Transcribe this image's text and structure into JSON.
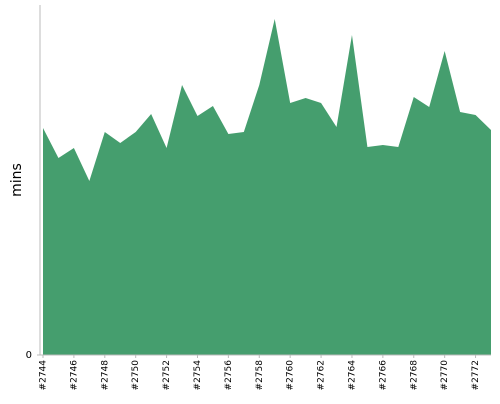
{
  "chart_data": {
    "type": "area",
    "y_label": "mins",
    "categories": [
      "#2744",
      null,
      "#2746",
      null,
      "#2748",
      null,
      "#2750",
      null,
      "#2752",
      null,
      "#2754",
      null,
      "#2756",
      null,
      "#2758",
      null,
      "#2760",
      null,
      "#2762",
      null,
      "#2764",
      null,
      "#2766",
      null,
      "#2768",
      null,
      "#2770",
      null,
      "#2772",
      null
    ],
    "values": [
      227,
      197,
      207,
      174,
      223,
      212,
      223,
      241,
      207,
      270,
      239,
      249,
      221,
      223,
      270,
      336,
      252,
      257,
      252,
      228,
      320,
      208,
      210,
      208,
      258,
      248,
      304,
      243,
      240,
      225
    ],
    "color": "#459e6e",
    "ylim": [
      0,
      350
    ],
    "yticks": [
      0
    ]
  }
}
